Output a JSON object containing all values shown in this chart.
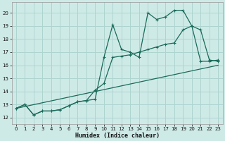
{
  "bg_color": "#ceeae7",
  "grid_color": "#aed4d0",
  "line_color": "#1a6b5a",
  "xlabel": "Humidex (Indice chaleur)",
  "xlim": [
    -0.5,
    23.5
  ],
  "ylim": [
    11.5,
    20.8
  ],
  "yticks": [
    12,
    13,
    14,
    15,
    16,
    17,
    18,
    19,
    20
  ],
  "xticks": [
    0,
    1,
    2,
    3,
    4,
    5,
    6,
    7,
    8,
    9,
    10,
    11,
    12,
    13,
    14,
    15,
    16,
    17,
    18,
    19,
    20,
    21,
    22,
    23
  ],
  "line1_x": [
    0,
    1,
    2,
    3,
    4,
    5,
    6,
    7,
    8,
    9,
    10,
    11,
    12,
    13,
    14,
    15,
    16,
    17,
    18,
    19,
    20,
    21,
    22,
    23
  ],
  "line1_y": [
    12.7,
    13.0,
    12.2,
    12.5,
    12.5,
    12.6,
    12.9,
    13.2,
    13.3,
    13.4,
    16.6,
    19.1,
    17.2,
    17.0,
    16.6,
    20.0,
    19.5,
    19.7,
    20.2,
    20.2,
    19.0,
    18.7,
    16.4,
    16.3
  ],
  "line2_x": [
    0,
    1,
    2,
    3,
    4,
    5,
    6,
    7,
    8,
    9,
    10,
    11,
    12,
    13,
    14,
    15,
    16,
    17,
    18,
    19,
    20,
    21,
    22,
    23
  ],
  "line2_y": [
    12.7,
    13.0,
    12.2,
    12.5,
    12.5,
    12.6,
    12.9,
    13.2,
    13.3,
    14.1,
    14.6,
    16.6,
    16.7,
    16.8,
    17.0,
    17.2,
    17.4,
    17.6,
    17.7,
    18.7,
    19.0,
    16.3,
    16.3,
    16.4
  ],
  "line3_x": [
    0,
    23
  ],
  "line3_y": [
    12.7,
    16.0
  ]
}
